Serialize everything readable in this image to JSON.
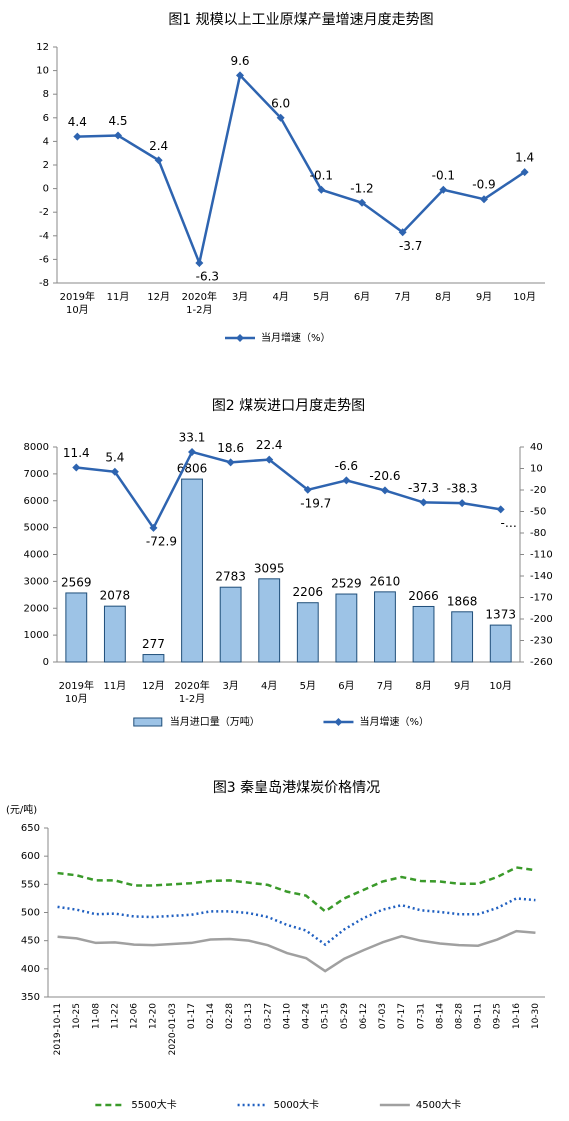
{
  "chart_data": [
    {
      "type": "line",
      "title": "图1  规模以上工业原煤产量增速月度走势图",
      "categories": [
        "2019年\n10月",
        "11月",
        "12月",
        "2020年\n1-2月",
        "3月",
        "4月",
        "5月",
        "6月",
        "7月",
        "8月",
        "9月",
        "10月"
      ],
      "series": [
        {
          "name": "当月增速（%）",
          "color": "#2e64b0",
          "marker": "diamond",
          "style": "solid",
          "values": [
            4.4,
            4.5,
            2.4,
            -6.3,
            9.6,
            6.0,
            -0.1,
            -1.2,
            -3.7,
            -0.1,
            -0.9,
            1.4
          ],
          "value_labels": [
            "4.4",
            "4.5",
            "2.4",
            "-6.3",
            "9.6",
            "6.0",
            "-0.1",
            "-1.2",
            "-3.7",
            "-0.1",
            "-0.9",
            "1.4"
          ]
        }
      ],
      "ylim": [
        -8,
        12
      ],
      "yticks": [
        -8,
        -6,
        -4,
        -2,
        0,
        2,
        4,
        6,
        8,
        10,
        12
      ]
    },
    {
      "type": "bar",
      "title": "图2  煤炭进口月度走势图",
      "categories": [
        "2019年\n10月",
        "11月",
        "12月",
        "2020年\n1-2月",
        "3月",
        "4月",
        "5月",
        "6月",
        "7月",
        "8月",
        "9月",
        "10月"
      ],
      "series": [
        {
          "name": "当月进口量（万吨）",
          "type": "bar",
          "color": "#9dc3e6",
          "edgecolor": "#1f4e79",
          "values": [
            2569,
            2078,
            277,
            6806,
            2783,
            3095,
            2206,
            2529,
            2610,
            2066,
            1868,
            1373
          ]
        },
        {
          "name": "当月增速（%）",
          "type": "line",
          "axis": "y2",
          "color": "#2e64b0",
          "marker": "diamond",
          "style": "solid",
          "values": [
            11.4,
            5.4,
            -72.9,
            33.1,
            18.6,
            22.4,
            -19.7,
            -6.6,
            -20.6,
            -37.3,
            -38.3,
            -47
          ],
          "value_labels": [
            "11.4",
            "5.4",
            "-72.9",
            "33.1",
            "18.6",
            "22.4",
            "-19.7",
            "-6.6",
            "-20.6",
            "-37.3",
            "-38.3",
            "-…"
          ]
        }
      ],
      "ylim": [
        0,
        8000
      ],
      "yticks": [
        0,
        1000,
        2000,
        3000,
        4000,
        5000,
        6000,
        7000,
        8000
      ],
      "y2lim": [
        -260,
        40
      ],
      "y2ticks": [
        40,
        10,
        -20,
        -50,
        -80,
        -110,
        -140,
        -170,
        -200,
        -230,
        -260
      ]
    },
    {
      "type": "line",
      "title": "图3    秦皇岛港煤炭价格情况",
      "y_label": "(元/吨)",
      "categories": [
        "2019-10-11",
        "10-25",
        "11-08",
        "11-22",
        "12-06",
        "12-20",
        "2020-01-03",
        "01-17",
        "02-14",
        "02-28",
        "03-13",
        "03-27",
        "04-10",
        "04-24",
        "05-15",
        "05-29",
        "06-12",
        "07-03",
        "07-17",
        "07-31",
        "08-14",
        "08-28",
        "09-11",
        "09-25",
        "10-16",
        "10-30"
      ],
      "series": [
        {
          "name": "5500大卡",
          "color": "#3a9a2a",
          "style": "dashed",
          "values": [
            570,
            566,
            557,
            557,
            548,
            548,
            550,
            552,
            556,
            557,
            553,
            549,
            537,
            530,
            502,
            525,
            540,
            555,
            563,
            556,
            555,
            551,
            551,
            563,
            580,
            575
          ]
        },
        {
          "name": "5000大卡",
          "color": "#1f5fc0",
          "style": "dotted",
          "values": [
            510,
            505,
            497,
            498,
            493,
            492,
            494,
            496,
            502,
            502,
            499,
            492,
            478,
            468,
            443,
            470,
            490,
            505,
            513,
            504,
            501,
            497,
            497,
            508,
            525,
            522
          ]
        },
        {
          "name": "4500大卡",
          "color": "#a0a0a0",
          "style": "solid",
          "values": [
            457,
            454,
            446,
            447,
            443,
            442,
            444,
            446,
            452,
            453,
            450,
            442,
            428,
            419,
            396,
            418,
            433,
            447,
            458,
            450,
            445,
            442,
            441,
            452,
            467,
            464
          ]
        }
      ],
      "ylim": [
        350,
        650
      ],
      "yticks": [
        350,
        400,
        450,
        500,
        550,
        600,
        650
      ]
    }
  ]
}
